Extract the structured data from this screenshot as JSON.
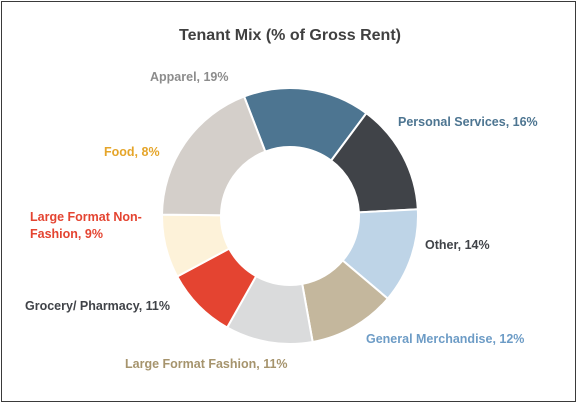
{
  "chart_data": {
    "type": "pie",
    "donut": true,
    "title": "Tenant Mix (% of Gross Rent)",
    "unit": "%",
    "slices": [
      {
        "name": "Personal Services",
        "value": 16,
        "color": "#4d7591",
        "label_lines": [
          "Personal Services, 16%"
        ],
        "label_color": "#4d7591"
      },
      {
        "name": "Other",
        "value": 14,
        "color": "#404348",
        "label_lines": [
          "Other, 14%"
        ],
        "label_color": "#404348"
      },
      {
        "name": "General Merchandise",
        "value": 12,
        "color": "#bed4e7",
        "label_lines": [
          "General Merchandise, 12%"
        ],
        "label_color": "#6d9cc6"
      },
      {
        "name": "Large Format Fashion",
        "value": 11,
        "color": "#c4b79d",
        "label_lines": [
          "Large Format Fashion, 11%"
        ],
        "label_color": "#a6946d"
      },
      {
        "name": "Grocery/ Pharmacy",
        "value": 11,
        "color": "#dadbdc",
        "label_lines": [
          "Grocery/ Pharmacy, 11%"
        ],
        "label_color": "#404348"
      },
      {
        "name": "Large Format Non-Fashion",
        "value": 9,
        "color": "#e44431",
        "label_lines": [
          "Large Format Non-",
          "Fashion, 9%"
        ],
        "label_color": "#e44431"
      },
      {
        "name": "Food",
        "value": 8,
        "color": "#fdf2d9",
        "label_lines": [
          "Food, 8%"
        ],
        "label_color": "#e5a52a"
      },
      {
        "name": "Apparel",
        "value": 19,
        "color": "#d4cfca",
        "label_lines": [
          "Apparel, 19%"
        ],
        "label_color": "#8c8c8c"
      }
    ]
  }
}
